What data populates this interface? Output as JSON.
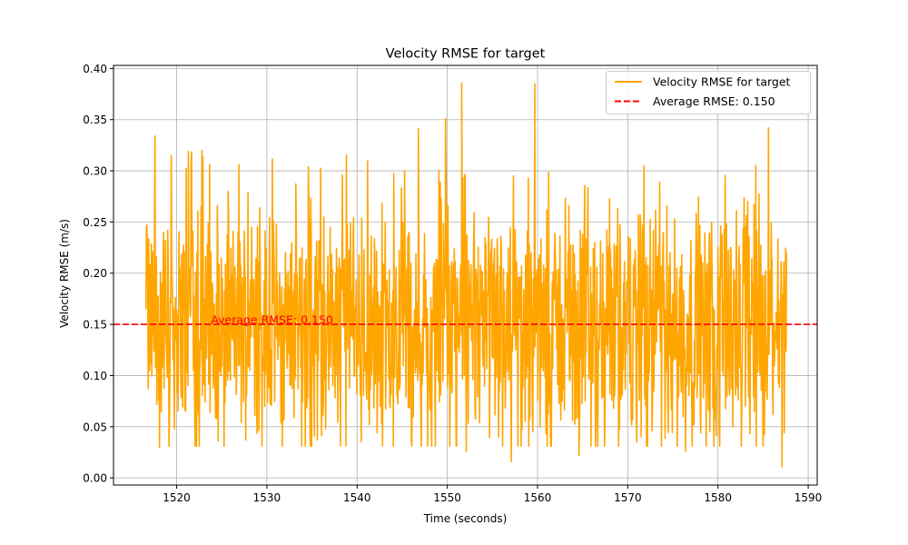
{
  "chart_data": {
    "type": "line",
    "title": "Velocity RMSE for target",
    "xlabel": "Time (seconds)",
    "ylabel": "Velocity RMSE (m/s)",
    "xlim": [
      1513,
      1591
    ],
    "ylim": [
      -0.007,
      0.403
    ],
    "x_ticks": [
      1520,
      1530,
      1540,
      1550,
      1560,
      1570,
      1580,
      1590
    ],
    "y_ticks": [
      0.0,
      0.05,
      0.1,
      0.15,
      0.2,
      0.25,
      0.3,
      0.35,
      0.4
    ],
    "x_tick_labels": [
      "1520",
      "1530",
      "1540",
      "1550",
      "1560",
      "1570",
      "1580",
      "1590"
    ],
    "y_tick_labels": [
      "0.00",
      "0.05",
      "0.10",
      "0.15",
      "0.20",
      "0.25",
      "0.30",
      "0.35",
      "0.40"
    ],
    "grid": true,
    "legend_position": "top-right",
    "series": [
      {
        "name": "Velocity RMSE for target",
        "color": "#FFA500",
        "style": "solid",
        "x_start": 1516.6,
        "x_end": 1587.6,
        "n_points": 1420,
        "mean": 0.15,
        "min": 0.011,
        "max": 0.386,
        "peaks": [
          {
            "x": 1516.7,
            "y": 0.247
          },
          {
            "x": 1517.6,
            "y": 0.334
          },
          {
            "x": 1518.1,
            "y": 0.03
          },
          {
            "x": 1519.4,
            "y": 0.315
          },
          {
            "x": 1521.3,
            "y": 0.319
          },
          {
            "x": 1522.8,
            "y": 0.32
          },
          {
            "x": 1524.6,
            "y": 0.036
          },
          {
            "x": 1526.9,
            "y": 0.306
          },
          {
            "x": 1534.6,
            "y": 0.304
          },
          {
            "x": 1535.6,
            "y": 0.341
          },
          {
            "x": 1535.6,
            "y": 0.037
          },
          {
            "x": 1546.8,
            "y": 0.341
          },
          {
            "x": 1549.8,
            "y": 0.351
          },
          {
            "x": 1551.6,
            "y": 0.386
          },
          {
            "x": 1552.1,
            "y": 0.026
          },
          {
            "x": 1557.1,
            "y": 0.016
          },
          {
            "x": 1559.7,
            "y": 0.385
          },
          {
            "x": 1564.6,
            "y": 0.022
          },
          {
            "x": 1571.0,
            "y": 0.035
          },
          {
            "x": 1571.8,
            "y": 0.305
          },
          {
            "x": 1576.4,
            "y": 0.026
          },
          {
            "x": 1579.8,
            "y": 0.041
          },
          {
            "x": 1585.6,
            "y": 0.342
          },
          {
            "x": 1587.1,
            "y": 0.011
          },
          {
            "x": 1587.6,
            "y": 0.22
          }
        ]
      },
      {
        "name": "Average RMSE: 0.150",
        "color": "#FF0000",
        "style": "dashed",
        "y": 0.15
      }
    ],
    "annotations": [
      {
        "text": "Average RMSE: 0.150",
        "x": 1523.8,
        "y": 0.15,
        "color": "#FF0000"
      }
    ]
  }
}
